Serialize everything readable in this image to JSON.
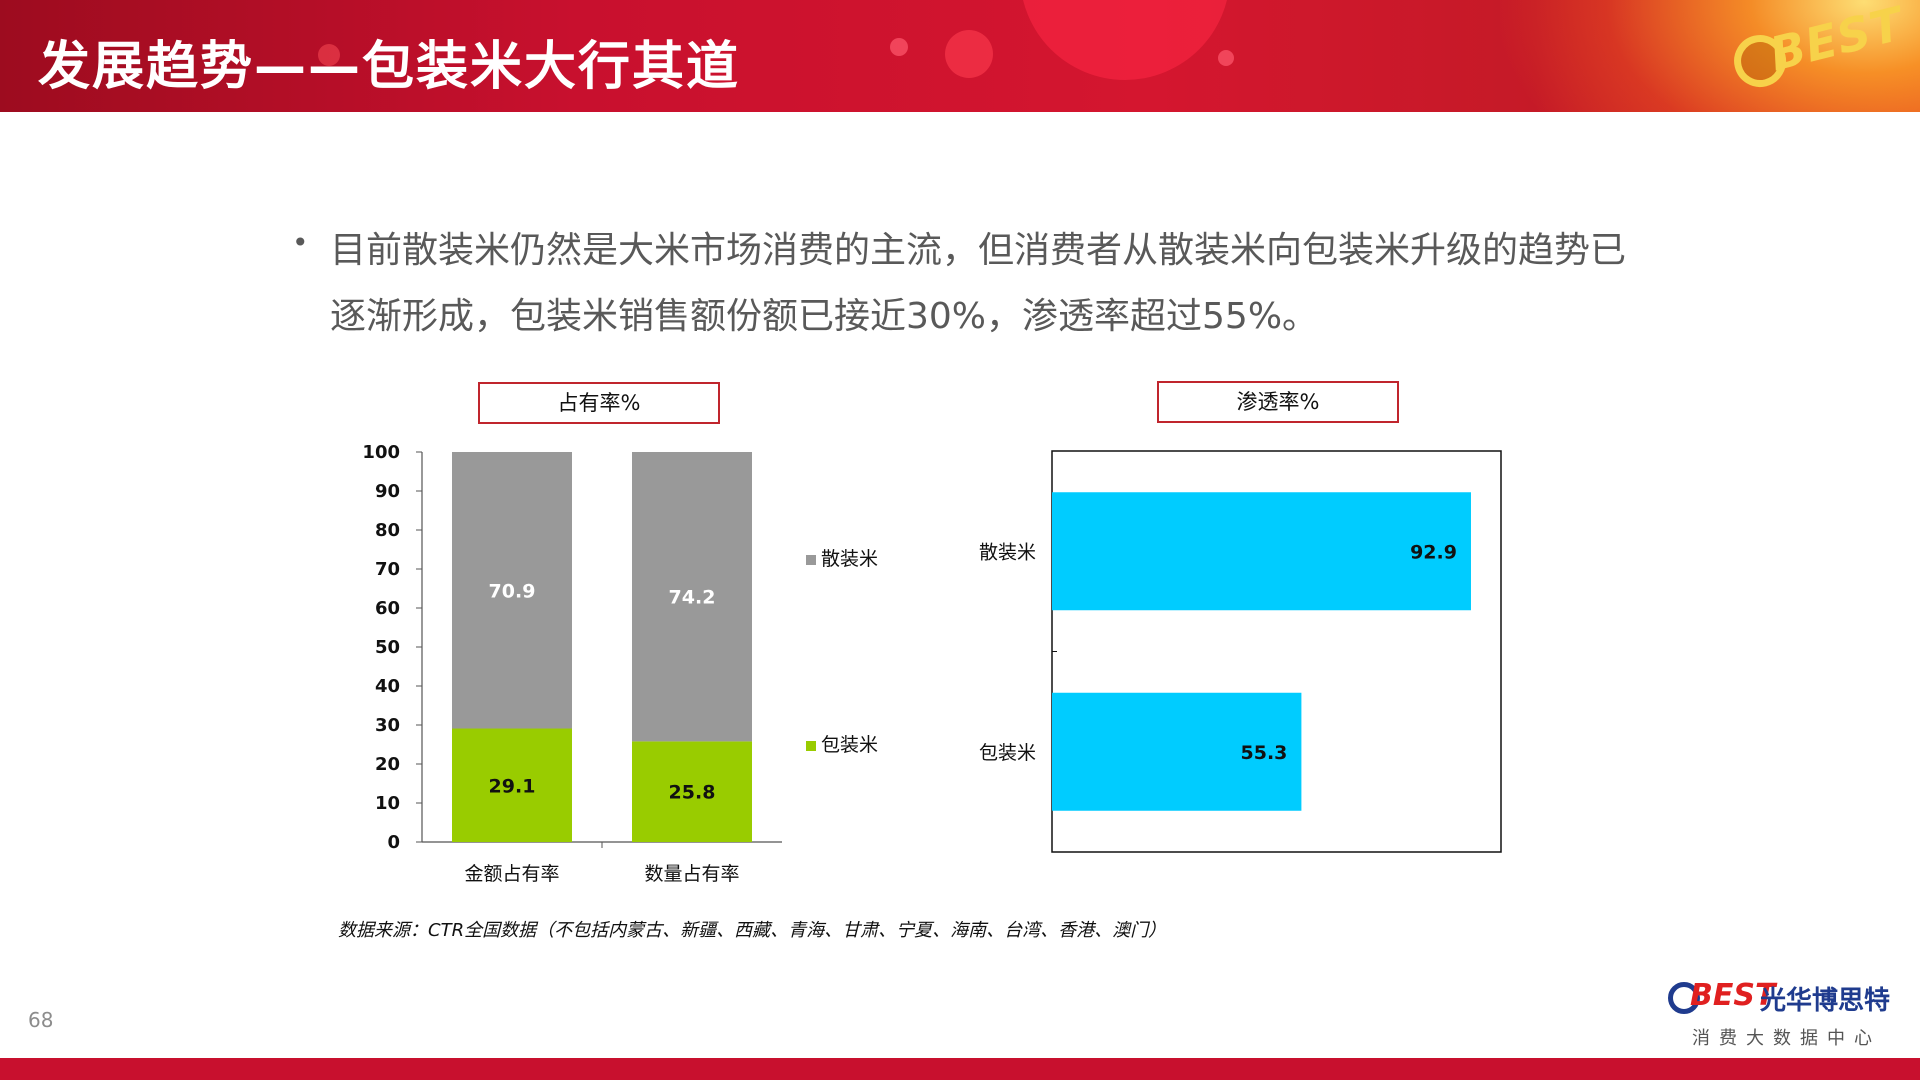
{
  "header": {
    "title": "发展趋势——包装米大行其道",
    "logo_text": "BEST"
  },
  "bullet": {
    "text": "目前散装米仍然是大米市场消费的主流，但消费者从散装米向包装米升级的趋势已逐渐形成，包装米销售额份额已接近30%，渗透率超过55%。"
  },
  "colors": {
    "bulk": "#999999",
    "packaged": "#99cc00",
    "penetration": "#00ccff",
    "title_border": "#c0252d",
    "brand_red": "#c8102e"
  },
  "chart_data": [
    {
      "type": "bar",
      "stacked": true,
      "title": "占有率%",
      "categories": [
        "金额占有率",
        "数量占有率"
      ],
      "series": [
        {
          "name": "包装米",
          "values": [
            29.1,
            25.8
          ]
        },
        {
          "name": "散装米",
          "values": [
            70.9,
            74.2
          ]
        }
      ],
      "ylim": [
        0,
        100
      ],
      "yticks": [
        0,
        10,
        20,
        30,
        40,
        50,
        60,
        70,
        80,
        90,
        100
      ],
      "legend": [
        "散装米",
        "包装米"
      ],
      "legend_position": "right"
    },
    {
      "type": "bar",
      "orientation": "horizontal",
      "title": "渗透率%",
      "categories": [
        "散装米",
        "包装米"
      ],
      "values": [
        92.9,
        55.3
      ],
      "xlim": [
        0,
        100
      ]
    }
  ],
  "source_note": "数据来源：CTR全国数据（不包括内蒙古、新疆、西藏、青海、甘肃、宁夏、海南、台湾、香港、澳门）",
  "page_number": "68",
  "brand": {
    "logo": "BEST",
    "name": "光华博思特",
    "subtitle": "消费大数据中心"
  }
}
